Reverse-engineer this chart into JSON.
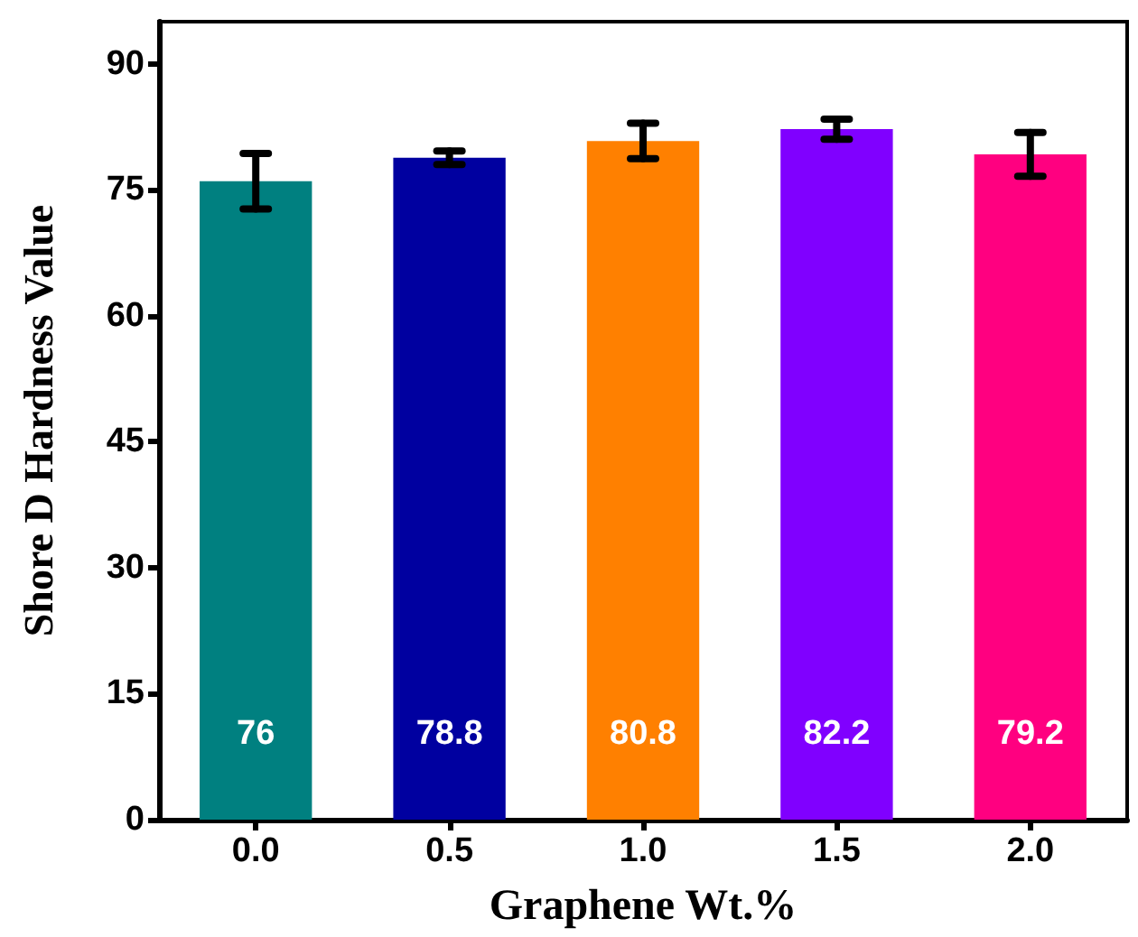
{
  "chart_data": {
    "type": "bar",
    "xlabel": "Graphene Wt.%",
    "ylabel": "Shore D Hardness Value",
    "categories": [
      "0.0",
      "0.5",
      "1.0",
      "1.5",
      "2.0"
    ],
    "values": [
      76,
      78.8,
      80.8,
      82.2,
      79.2
    ],
    "colors": [
      "#008080",
      "#0000a0",
      "#ff8000",
      "#8000ff",
      "#ff0080"
    ],
    "errors": [
      3.3,
      0.8,
      2.1,
      1.2,
      2.6
    ],
    "data_labels": true,
    "ylim": [
      0,
      95
    ],
    "yticks": [
      0,
      15,
      30,
      45,
      60,
      75,
      90
    ],
    "grid": false
  }
}
